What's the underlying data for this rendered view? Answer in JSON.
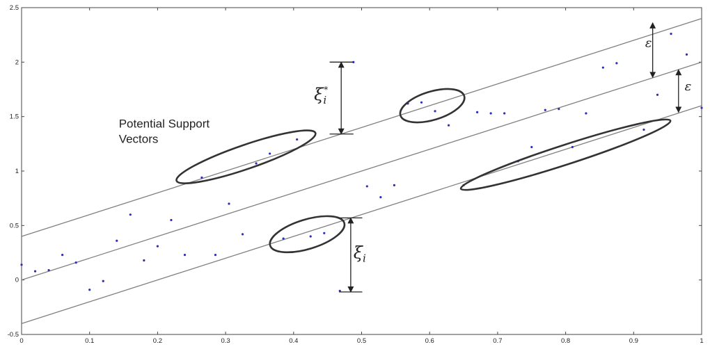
{
  "chart_data": {
    "type": "scatter",
    "title": "",
    "xlabel": "",
    "ylabel": "",
    "xlim": [
      0,
      1
    ],
    "ylim": [
      -0.5,
      2.5
    ],
    "x_ticks": [
      0,
      0.1,
      0.2,
      0.3,
      0.4,
      0.5,
      0.6,
      0.7,
      0.8,
      0.9,
      1
    ],
    "x_tick_labels": [
      "0",
      "0.1",
      "0.2",
      "0.3",
      "0.4",
      "0.5",
      "0.6",
      "0.7",
      "0.8",
      "0.9",
      "1"
    ],
    "y_ticks": [
      -0.5,
      0,
      0.5,
      1,
      1.5,
      2,
      2.5
    ],
    "y_tick_labels": [
      "-0.5",
      "0",
      "0.5",
      "1",
      "1.5",
      "2",
      "2.5"
    ],
    "grid": false,
    "marker_color": "#2d2dbe",
    "line_color": "#808080",
    "ellipse_color": "#333333",
    "points": [
      {
        "x": 0.0,
        "y": 0.14
      },
      {
        "x": 0.02,
        "y": 0.08
      },
      {
        "x": 0.04,
        "y": 0.09
      },
      {
        "x": 0.06,
        "y": 0.23
      },
      {
        "x": 0.08,
        "y": 0.16
      },
      {
        "x": 0.1,
        "y": -0.09
      },
      {
        "x": 0.12,
        "y": -0.01
      },
      {
        "x": 0.14,
        "y": 0.36
      },
      {
        "x": 0.16,
        "y": 0.6
      },
      {
        "x": 0.18,
        "y": 0.18
      },
      {
        "x": 0.2,
        "y": 0.31
      },
      {
        "x": 0.22,
        "y": 0.55
      },
      {
        "x": 0.24,
        "y": 0.23
      },
      {
        "x": 0.265,
        "y": 0.94
      },
      {
        "x": 0.285,
        "y": 0.23
      },
      {
        "x": 0.305,
        "y": 0.7
      },
      {
        "x": 0.325,
        "y": 0.42
      },
      {
        "x": 0.345,
        "y": 1.07
      },
      {
        "x": 0.365,
        "y": 1.16
      },
      {
        "x": 0.385,
        "y": 0.38
      },
      {
        "x": 0.405,
        "y": 1.29
      },
      {
        "x": 0.425,
        "y": 0.4
      },
      {
        "x": 0.445,
        "y": 0.43
      },
      {
        "x": 0.468,
        "y": -0.1
      },
      {
        "x": 0.488,
        "y": 2.0
      },
      {
        "x": 0.508,
        "y": 0.86
      },
      {
        "x": 0.528,
        "y": 0.76
      },
      {
        "x": 0.548,
        "y": 0.87
      },
      {
        "x": 0.568,
        "y": 1.62
      },
      {
        "x": 0.588,
        "y": 1.63
      },
      {
        "x": 0.608,
        "y": 1.55
      },
      {
        "x": 0.628,
        "y": 1.42
      },
      {
        "x": 0.65,
        "y": 0.87
      },
      {
        "x": 0.67,
        "y": 1.54
      },
      {
        "x": 0.69,
        "y": 1.53
      },
      {
        "x": 0.71,
        "y": 1.53
      },
      {
        "x": 0.73,
        "y": 1.09
      },
      {
        "x": 0.75,
        "y": 1.22
      },
      {
        "x": 0.77,
        "y": 1.56
      },
      {
        "x": 0.79,
        "y": 1.57
      },
      {
        "x": 0.81,
        "y": 1.22
      },
      {
        "x": 0.83,
        "y": 1.53
      },
      {
        "x": 0.855,
        "y": 1.95
      },
      {
        "x": 0.875,
        "y": 1.99
      },
      {
        "x": 0.915,
        "y": 1.38
      },
      {
        "x": 0.935,
        "y": 1.7
      },
      {
        "x": 0.955,
        "y": 2.26
      },
      {
        "x": 0.978,
        "y": 2.07
      },
      {
        "x": 1.0,
        "y": 1.58
      }
    ],
    "lines": [
      {
        "role": "upper-margin",
        "x": [
          0,
          1
        ],
        "y": [
          0.4,
          2.4
        ]
      },
      {
        "role": "regression",
        "x": [
          0,
          1
        ],
        "y": [
          0.0,
          2.0
        ]
      },
      {
        "role": "lower-margin",
        "x": [
          0,
          1
        ],
        "y": [
          -0.4,
          1.6
        ]
      }
    ],
    "ellipses": [
      {
        "cx": 0.33,
        "cy": 1.13,
        "rx": 0.108,
        "ry": 0.11,
        "angle": -19
      },
      {
        "cx": 0.604,
        "cy": 1.6,
        "rx": 0.049,
        "ry": 0.13,
        "angle": -17
      },
      {
        "cx": 0.8,
        "cy": 1.15,
        "rx": 0.162,
        "ry": 0.09,
        "angle": -18
      },
      {
        "cx": 0.42,
        "cy": 0.42,
        "rx": 0.057,
        "ry": 0.135,
        "angle": -17
      }
    ],
    "annotations": [
      {
        "text": "Potential Support Vectors",
        "lines": [
          "Potential Support",
          "Vectors"
        ],
        "x": 0.143,
        "y": 1.4
      },
      {
        "symbol": "ξ",
        "subscript": "i",
        "superscript": "*",
        "x": 0.43,
        "y": 1.65
      },
      {
        "symbol": "ξ",
        "subscript": "i",
        "x": 0.488,
        "y": 0.2
      },
      {
        "symbol": "ε",
        "x": 0.917,
        "y": 2.14
      },
      {
        "symbol": "ε",
        "x": 0.975,
        "y": 1.74
      }
    ],
    "arrows": [
      {
        "name": "xi-star-arrow",
        "x": 0.47,
        "y_from": 2.0,
        "y_to": 1.34
      },
      {
        "name": "xi-arrow",
        "x": 0.484,
        "y_from": 0.57,
        "y_to": -0.11
      },
      {
        "name": "epsilon-top-arrow",
        "x": 0.928,
        "y_from": 2.36,
        "y_to": 1.86
      },
      {
        "name": "epsilon-bottom-arrow",
        "x": 0.966,
        "y_from": 1.93,
        "y_to": 1.54
      }
    ],
    "arrow_caps": [
      {
        "name": "xi-star-cap-top",
        "x1": 0.453,
        "x2": 0.488,
        "y": 2.0
      },
      {
        "name": "xi-star-cap-bottom",
        "x1": 0.453,
        "x2": 0.488,
        "y": 1.34
      },
      {
        "name": "xi-cap-top",
        "x1": 0.467,
        "x2": 0.501,
        "y": 0.57
      },
      {
        "name": "xi-cap-bottom",
        "x1": 0.467,
        "x2": 0.501,
        "y": -0.11
      }
    ]
  }
}
